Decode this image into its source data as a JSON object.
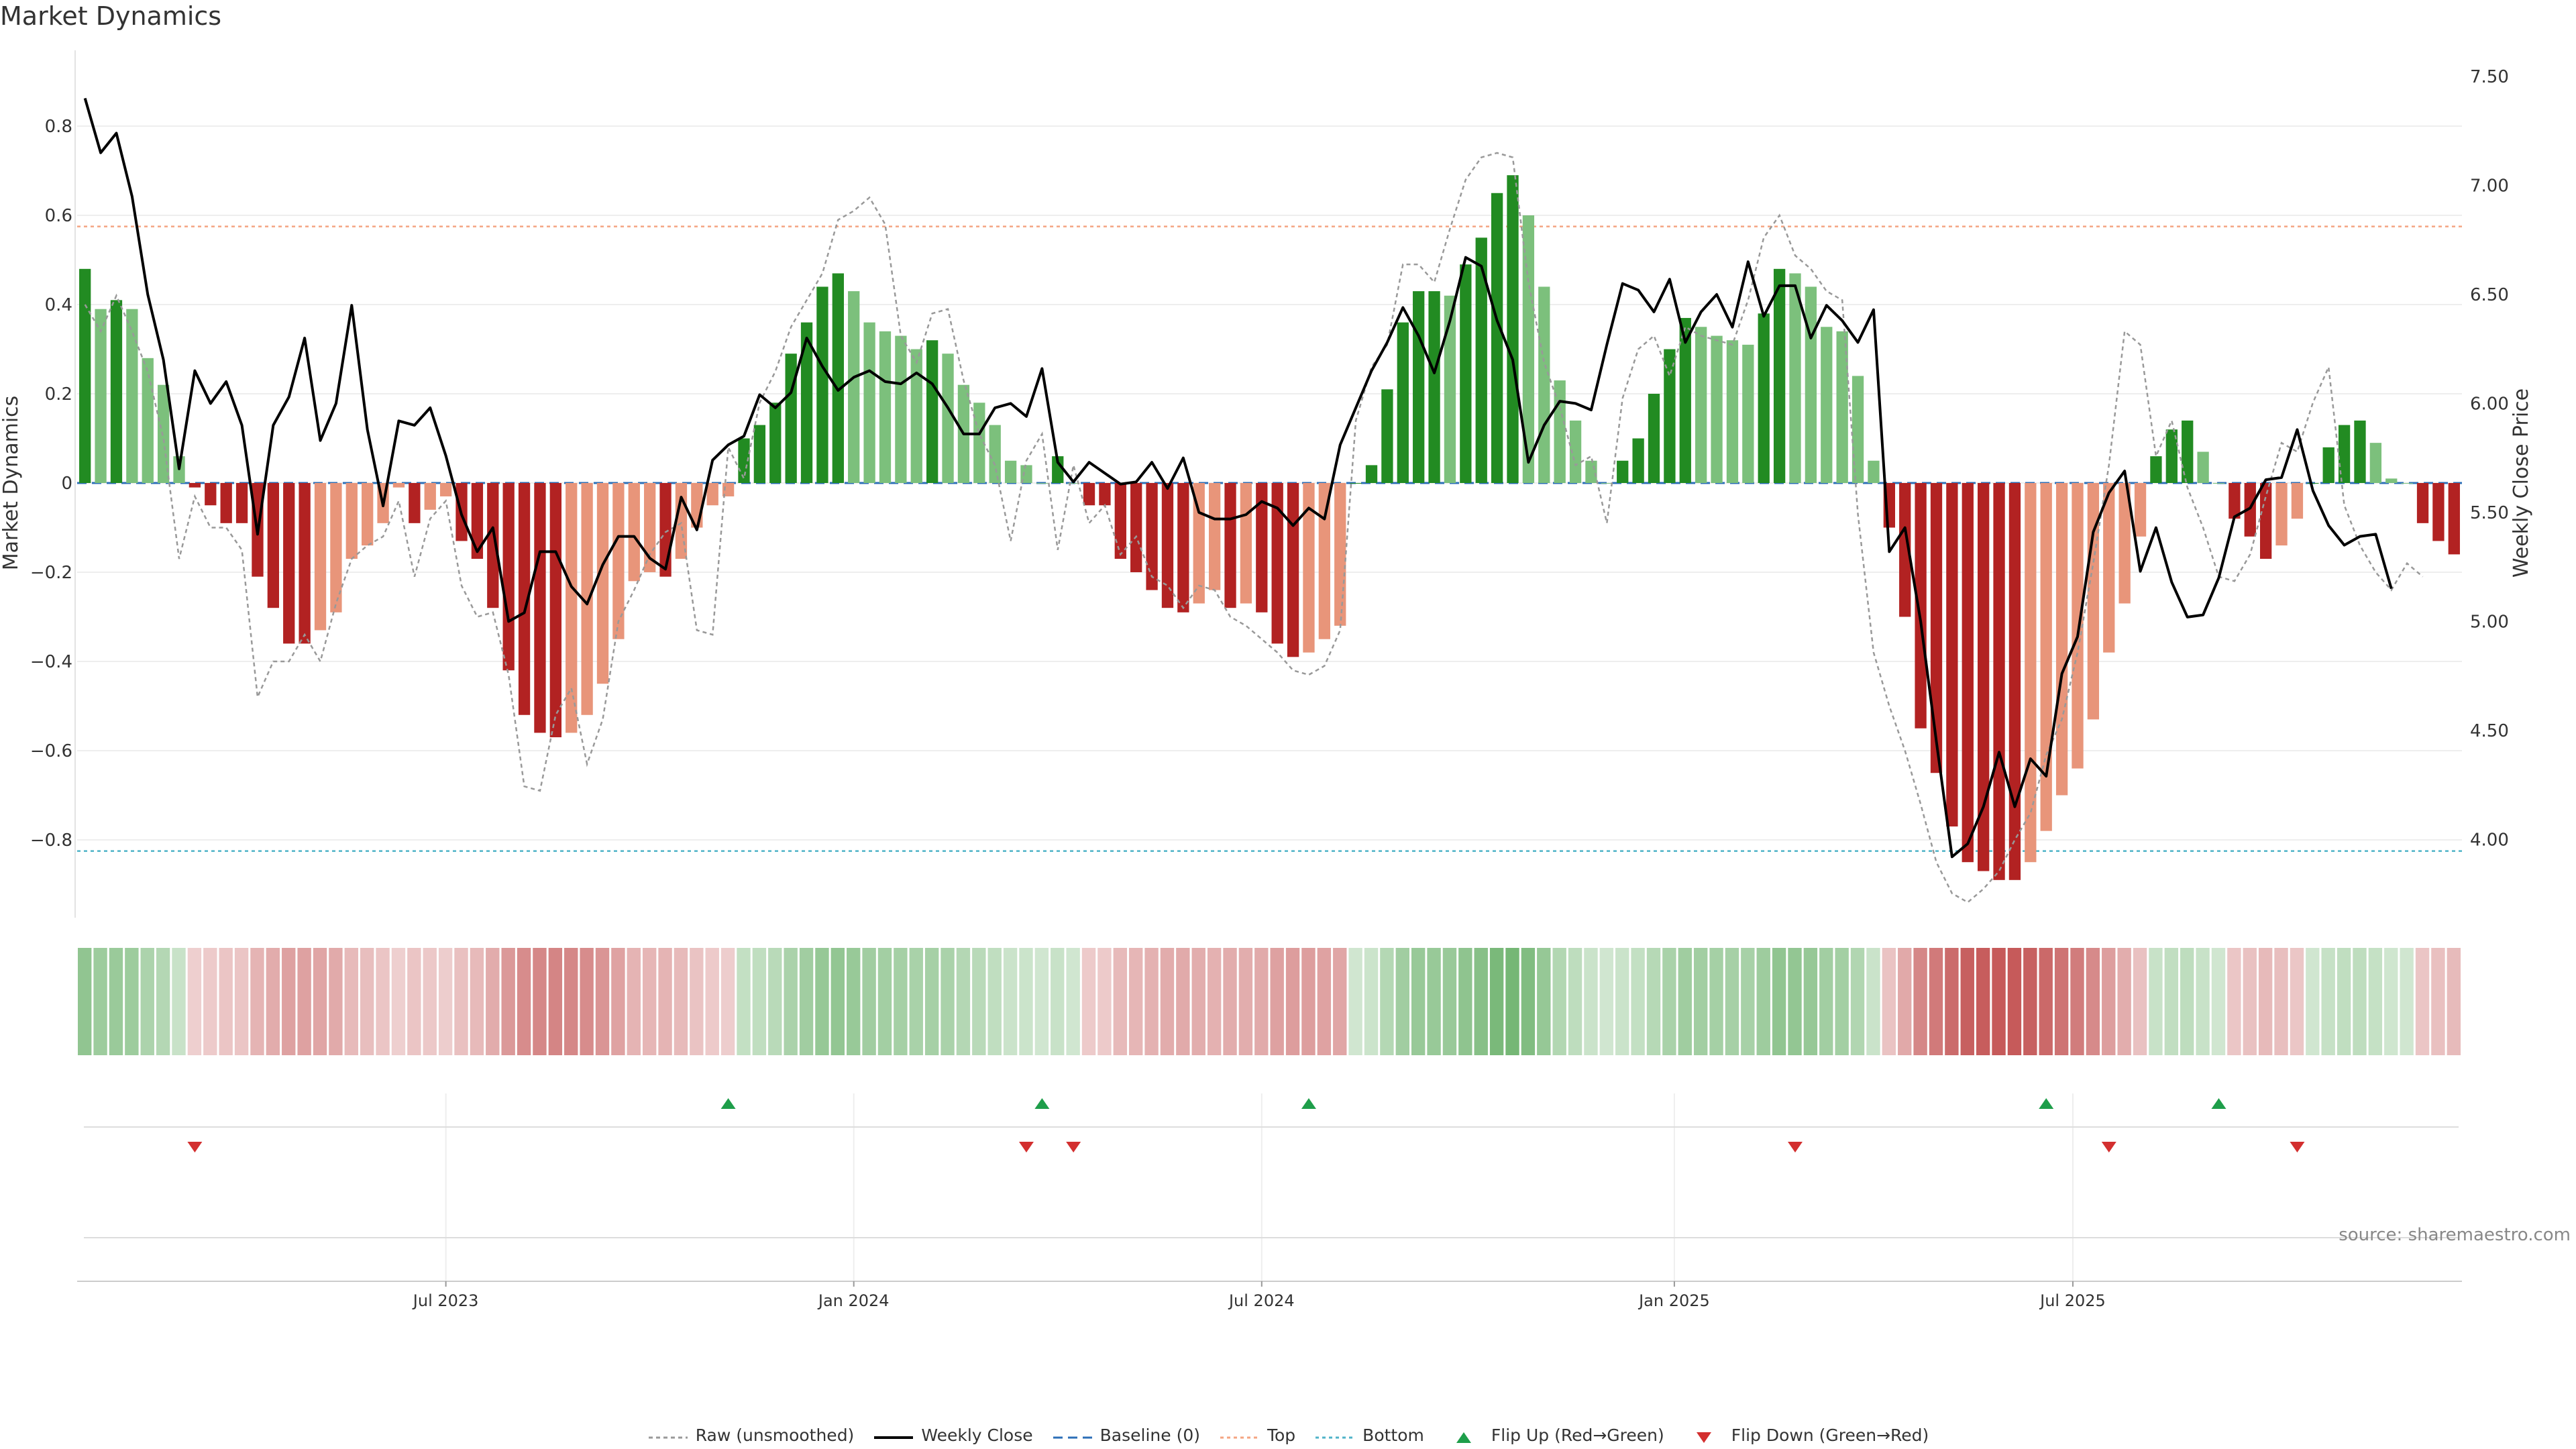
{
  "title": "Market Dynamics",
  "source": "source: sharemaestro.com",
  "colors": {
    "strong_green": "#228B22",
    "light_green": "#7CC07C",
    "strong_red": "#B22222",
    "light_red": "#E8957A",
    "top_line": "#F4A582",
    "bottom_line": "#4FB3C8",
    "baseline": "#2C6FB7",
    "raw": "#999999",
    "close": "#000000",
    "flip_up": "#1E9E4A",
    "flip_down": "#D32F2F"
  },
  "legend": [
    {
      "key": "raw",
      "label": "Raw (unsmoothed)"
    },
    {
      "key": "close",
      "label": "Weekly Close"
    },
    {
      "key": "baseline",
      "label": "Baseline (0)"
    },
    {
      "key": "top",
      "label": "Top"
    },
    {
      "key": "bottom",
      "label": "Bottom"
    },
    {
      "key": "flip_up",
      "label": "Flip Up (Red→Green)"
    },
    {
      "key": "flip_down",
      "label": "Flip Down (Green→Red)"
    }
  ],
  "chart_data": {
    "type": "bar",
    "title": "Market Dynamics",
    "ylabel": "Market Dynamics",
    "y2label": "Weekly Close Price",
    "ylim": [
      -0.97,
      0.97
    ],
    "y2lim": [
      3.65,
      7.62
    ],
    "yticks": [
      "0.8",
      "0.6",
      "0.4",
      "0.2",
      "0",
      "−0.2",
      "−0.4",
      "−0.6",
      "−0.8"
    ],
    "ytick_values": [
      0.8,
      0.6,
      0.4,
      0.2,
      0,
      -0.2,
      -0.4,
      -0.6,
      -0.8
    ],
    "y2ticks": [
      "7.50",
      "7.00",
      "6.50",
      "6.00",
      "5.50",
      "5.00",
      "4.50",
      "4.00"
    ],
    "y2tick_values": [
      7.5,
      7.0,
      6.5,
      6.0,
      5.5,
      5.0,
      4.5,
      4.0
    ],
    "x_start_week": "2023-01-16",
    "x_tick_labels": [
      "Jul 2023",
      "Jan 2024",
      "Jul 2024",
      "Jan 2025",
      "Jul 2025"
    ],
    "x_tick_weeks": [
      23.0,
      49.0,
      75.0,
      101.3,
      126.7
    ],
    "top": 0.575,
    "bottom": -0.825,
    "baseline": 0,
    "series": [
      {
        "name": "Market Dynamics",
        "values": [
          0.48,
          0.39,
          0.41,
          0.39,
          0.28,
          0.22,
          0.06,
          -0.01,
          -0.05,
          -0.09,
          -0.09,
          -0.21,
          -0.28,
          -0.36,
          -0.36,
          -0.33,
          -0.29,
          -0.17,
          -0.14,
          -0.09,
          -0.01,
          -0.09,
          -0.06,
          -0.03,
          -0.13,
          -0.17,
          -0.28,
          -0.42,
          -0.52,
          -0.56,
          -0.57,
          -0.56,
          -0.52,
          -0.45,
          -0.35,
          -0.22,
          -0.2,
          -0.21,
          -0.17,
          -0.1,
          -0.05,
          -0.03,
          0.1,
          0.13,
          0.18,
          0.29,
          0.36,
          0.44,
          0.47,
          0.43,
          0.36,
          0.34,
          0.33,
          0.3,
          0.32,
          0.29,
          0.22,
          0.18,
          0.13,
          0.05,
          0.04,
          0.0,
          0.06,
          0.0,
          -0.05,
          -0.05,
          -0.17,
          -0.2,
          -0.24,
          -0.28,
          -0.29,
          -0.27,
          -0.24,
          -0.28,
          -0.27,
          -0.29,
          -0.36,
          -0.39,
          -0.38,
          -0.35,
          -0.32,
          0.0,
          0.04,
          0.21,
          0.36,
          0.43,
          0.43,
          0.42,
          0.49,
          0.55,
          0.65,
          0.69,
          0.6,
          0.44,
          0.23,
          0.14,
          0.05,
          0.0,
          0.05,
          0.1,
          0.2,
          0.3,
          0.37,
          0.35,
          0.33,
          0.32,
          0.31,
          0.38,
          0.48,
          0.47,
          0.44,
          0.35,
          0.34,
          0.24,
          0.05,
          -0.1,
          -0.3,
          -0.55,
          -0.65,
          -0.77,
          -0.85,
          -0.87,
          -0.89,
          -0.89,
          -0.85,
          -0.78,
          -0.7,
          -0.64,
          -0.53,
          -0.38,
          -0.27,
          -0.12,
          0.06,
          0.12,
          0.14,
          0.07,
          0.0,
          -0.08,
          -0.12,
          -0.17,
          -0.14,
          -0.08,
          0.0,
          0.08,
          0.13,
          0.14,
          0.09,
          0.01,
          0.0,
          -0.09,
          -0.13,
          -0.16
        ]
      },
      {
        "name": "Raw (unsmoothed)",
        "values": [
          0.4,
          0.34,
          0.42,
          0.34,
          0.25,
          0.1,
          -0.17,
          -0.03,
          -0.1,
          -0.1,
          -0.15,
          -0.48,
          -0.4,
          -0.4,
          -0.34,
          -0.4,
          -0.27,
          -0.17,
          -0.14,
          -0.12,
          -0.04,
          -0.21,
          -0.08,
          -0.04,
          -0.23,
          -0.3,
          -0.29,
          -0.43,
          -0.68,
          -0.69,
          -0.52,
          -0.46,
          -0.63,
          -0.53,
          -0.31,
          -0.24,
          -0.16,
          -0.11,
          -0.09,
          -0.33,
          -0.34,
          0.08,
          0.01,
          0.18,
          0.25,
          0.35,
          0.41,
          0.47,
          0.59,
          0.61,
          0.64,
          0.58,
          0.33,
          0.27,
          0.38,
          0.39,
          0.23,
          0.11,
          0.04,
          -0.13,
          0.05,
          0.11,
          -0.15,
          0.04,
          -0.09,
          -0.05,
          -0.16,
          -0.12,
          -0.21,
          -0.23,
          -0.28,
          -0.23,
          -0.24,
          -0.3,
          -0.32,
          -0.35,
          -0.38,
          -0.42,
          -0.43,
          -0.41,
          -0.33,
          0.14,
          0.26,
          0.31,
          0.49,
          0.49,
          0.45,
          0.57,
          0.68,
          0.73,
          0.74,
          0.73,
          0.45,
          0.27,
          0.17,
          0.04,
          0.06,
          -0.09,
          0.19,
          0.3,
          0.33,
          0.24,
          0.35,
          0.33,
          0.32,
          0.31,
          0.41,
          0.55,
          0.6,
          0.51,
          0.48,
          0.43,
          0.41,
          -0.07,
          -0.38,
          -0.5,
          -0.6,
          -0.72,
          -0.85,
          -0.92,
          -0.94,
          -0.91,
          -0.87,
          -0.8,
          -0.74,
          -0.61,
          -0.53,
          -0.38,
          -0.18,
          0.04,
          0.34,
          0.31,
          0.06,
          0.14,
          -0.01,
          -0.1,
          -0.21,
          -0.22,
          -0.16,
          -0.03,
          0.09,
          0.07,
          0.18,
          0.26,
          -0.05,
          -0.14,
          -0.2,
          -0.24,
          -0.18,
          -0.21
        ]
      },
      {
        "name": "Weekly Close",
        "values": [
          7.4,
          7.15,
          7.24,
          6.95,
          6.5,
          6.2,
          5.7,
          6.15,
          6.0,
          6.1,
          5.9,
          5.4,
          5.9,
          6.03,
          6.3,
          5.83,
          6.0,
          6.45,
          5.88,
          5.53,
          5.92,
          5.9,
          5.98,
          5.76,
          5.49,
          5.32,
          5.43,
          5.0,
          5.04,
          5.32,
          5.32,
          5.16,
          5.08,
          5.26,
          5.39,
          5.39,
          5.29,
          5.24,
          5.57,
          5.42,
          5.74,
          5.81,
          5.85,
          6.04,
          5.98,
          6.05,
          6.3,
          6.17,
          6.06,
          6.12,
          6.15,
          6.1,
          6.09,
          6.14,
          6.09,
          5.98,
          5.86,
          5.86,
          5.98,
          6.0,
          5.94,
          6.16,
          5.73,
          5.64,
          5.73,
          5.68,
          5.63,
          5.64,
          5.73,
          5.61,
          5.75,
          5.5,
          5.47,
          5.47,
          5.49,
          5.55,
          5.52,
          5.44,
          5.52,
          5.47,
          5.81,
          5.98,
          6.15,
          6.28,
          6.44,
          6.31,
          6.14,
          6.38,
          6.67,
          6.63,
          6.38,
          6.2,
          5.73,
          5.9,
          6.01,
          6.0,
          5.97,
          6.27,
          6.55,
          6.52,
          6.42,
          6.57,
          6.28,
          6.42,
          6.5,
          6.35,
          6.65,
          6.4,
          6.54,
          6.54,
          6.3,
          6.45,
          6.38,
          6.28,
          6.43,
          5.32,
          5.43,
          5.0,
          4.45,
          3.92,
          3.98,
          4.15,
          4.4,
          4.15,
          4.37,
          4.29,
          4.76,
          4.93,
          5.41,
          5.59,
          5.69,
          5.23,
          5.43,
          5.18,
          5.02,
          5.03,
          5.2,
          5.48,
          5.52,
          5.65,
          5.66,
          5.88,
          5.6,
          5.44,
          5.35,
          5.39,
          5.4,
          5.15
        ]
      },
      {
        "name": "Market Breadth Strip",
        "values": [
          0.48,
          0.39,
          0.41,
          0.39,
          0.28,
          0.22,
          0.06,
          -0.01,
          -0.05,
          -0.09,
          -0.09,
          -0.21,
          -0.28,
          -0.36,
          -0.36,
          -0.33,
          -0.29,
          -0.17,
          -0.14,
          -0.09,
          -0.01,
          -0.09,
          -0.06,
          -0.03,
          -0.13,
          -0.17,
          -0.28,
          -0.42,
          -0.52,
          -0.56,
          -0.57,
          -0.56,
          -0.52,
          -0.45,
          -0.35,
          -0.22,
          -0.2,
          -0.21,
          -0.17,
          -0.1,
          -0.05,
          -0.03,
          0.1,
          0.13,
          0.18,
          0.29,
          0.36,
          0.44,
          0.47,
          0.43,
          0.36,
          0.34,
          0.33,
          0.3,
          0.32,
          0.29,
          0.22,
          0.18,
          0.13,
          0.05,
          0.04,
          0.0,
          0.06,
          0.0,
          -0.05,
          -0.05,
          -0.17,
          -0.2,
          -0.24,
          -0.28,
          -0.29,
          -0.27,
          -0.24,
          -0.28,
          -0.27,
          -0.29,
          -0.36,
          -0.39,
          -0.38,
          -0.35,
          -0.32,
          0.0,
          0.04,
          0.21,
          0.36,
          0.43,
          0.43,
          0.42,
          0.49,
          0.55,
          0.65,
          0.69,
          0.6,
          0.44,
          0.23,
          0.14,
          0.05,
          0.0,
          0.05,
          0.1,
          0.2,
          0.3,
          0.37,
          0.35,
          0.33,
          0.32,
          0.31,
          0.38,
          0.48,
          0.47,
          0.44,
          0.35,
          0.34,
          0.24,
          0.05,
          -0.1,
          -0.3,
          -0.55,
          -0.65,
          -0.77,
          -0.85,
          -0.87,
          -0.89,
          -0.89,
          -0.85,
          -0.78,
          -0.7,
          -0.64,
          -0.53,
          -0.38,
          -0.27,
          -0.12,
          0.06,
          0.12,
          0.14,
          0.07,
          0.0,
          -0.08,
          -0.12,
          -0.17,
          -0.14,
          -0.08,
          0.0,
          0.08,
          0.13,
          0.14,
          0.09,
          0.01,
          0.0,
          -0.09,
          -0.13,
          -0.16
        ]
      }
    ],
    "flip_up_weeks": [
      41,
      61,
      78,
      125,
      136
    ],
    "flip_down_weeks": [
      7,
      60,
      63,
      109,
      129,
      141
    ]
  }
}
